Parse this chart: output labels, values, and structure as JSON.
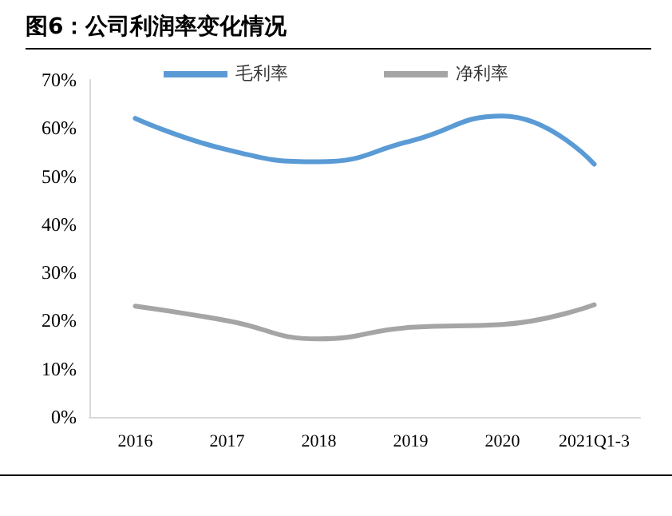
{
  "chart_data": {
    "type": "line",
    "title": "图6：公司利润率变化情况",
    "categories": [
      "2016",
      "2017",
      "2018",
      "2019",
      "2020",
      "2021Q1-3"
    ],
    "series": [
      {
        "name": "毛利率",
        "color": "#5b9bd5",
        "values": [
          62,
          55.5,
          53,
          57.3,
          62.5,
          52.5
        ]
      },
      {
        "name": "净利率",
        "color": "#a5a5a5",
        "values": [
          23,
          20,
          16.2,
          18.6,
          19.2,
          23.3
        ]
      }
    ],
    "ylim": [
      0,
      70
    ],
    "yticks": [
      {
        "value": 0,
        "label": "0%"
      },
      {
        "value": 10,
        "label": "10%"
      },
      {
        "value": 20,
        "label": "20%"
      },
      {
        "value": 30,
        "label": "30%"
      },
      {
        "value": 40,
        "label": "40%"
      },
      {
        "value": 50,
        "label": "50%"
      },
      {
        "value": 60,
        "label": "60%"
      },
      {
        "value": 70,
        "label": "70%"
      }
    ],
    "grid": false,
    "legend": "top",
    "marker": "none",
    "line_style": "solid"
  }
}
